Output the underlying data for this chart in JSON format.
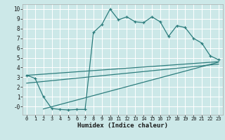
{
  "title": "",
  "xlabel": "Humidex (Indice chaleur)",
  "bg_color": "#cce8e8",
  "grid_color": "#ffffff",
  "line_color": "#2d7d7d",
  "xlim": [
    -0.5,
    23.5
  ],
  "ylim": [
    -0.85,
    10.5
  ],
  "xticks": [
    0,
    1,
    2,
    3,
    4,
    5,
    6,
    7,
    8,
    9,
    10,
    11,
    12,
    13,
    14,
    15,
    16,
    17,
    18,
    19,
    20,
    21,
    22,
    23
  ],
  "yticks": [
    0,
    1,
    2,
    3,
    4,
    5,
    6,
    7,
    8,
    9,
    10
  ],
  "ytick_labels": [
    "-0",
    "1",
    "2",
    "3",
    "4",
    "5",
    "6",
    "7",
    "8",
    "9",
    "10"
  ],
  "curve1_x": [
    0,
    1,
    2,
    3,
    4,
    5,
    6,
    7,
    8,
    9,
    10,
    11,
    12,
    13,
    14,
    15,
    16,
    17,
    18,
    19,
    20,
    21,
    22,
    23
  ],
  "curve1_y": [
    3.2,
    2.9,
    1.0,
    -0.2,
    -0.3,
    -0.35,
    -0.3,
    -0.3,
    7.6,
    8.4,
    10.0,
    8.9,
    9.2,
    8.7,
    8.6,
    9.2,
    8.7,
    7.2,
    8.3,
    8.1,
    7.0,
    6.5,
    5.2,
    4.8
  ],
  "curve2_x": [
    0,
    23
  ],
  "curve2_y": [
    3.2,
    4.6
  ],
  "curve3_x": [
    0,
    23
  ],
  "curve3_y": [
    2.4,
    4.35
  ],
  "curve4_x": [
    2,
    23
  ],
  "curve4_y": [
    -0.25,
    4.55
  ]
}
